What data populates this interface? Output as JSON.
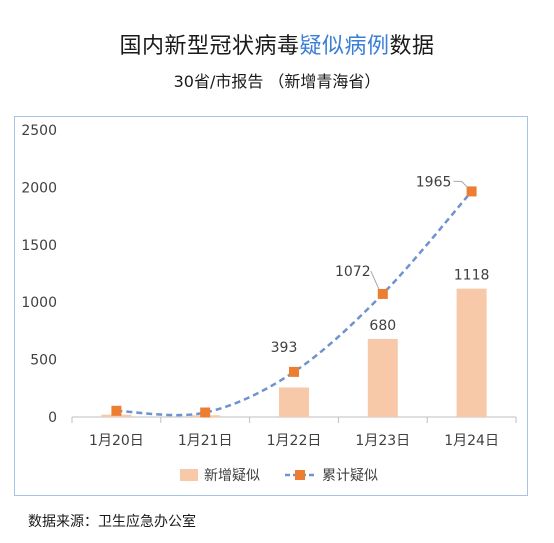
{
  "header": {
    "title_part1": "国内新型冠状病毒",
    "title_highlight": "疑似病例",
    "title_part2": "数据",
    "subtitle": "30省/市报告 （新增青海省）",
    "highlight_color": "#3a7fd6"
  },
  "source": "数据来源：卫生应急办公室",
  "chart_data": {
    "type": "bar",
    "categories": [
      "1月20日",
      "1月21日",
      "1月22日",
      "1月23日",
      "1月24日"
    ],
    "ylim": [
      0,
      2500
    ],
    "yticks": [
      0,
      500,
      1000,
      1500,
      2000,
      2500
    ],
    "grid": false,
    "legend": "bottom",
    "series": [
      {
        "name": "新增疑似",
        "type": "bar",
        "color": "#f7c9a8",
        "values": [
          20,
          15,
          257,
          680,
          1118
        ],
        "labels": [
          "",
          "",
          "",
          "680",
          "1118"
        ]
      },
      {
        "name": "累计疑似",
        "type": "line",
        "color": "#6f93cf",
        "marker_color": "#ed7d31",
        "values": [
          54,
          39,
          393,
          1072,
          1965
        ],
        "labels": [
          "",
          "",
          "393",
          "1072",
          "1965"
        ]
      }
    ]
  }
}
